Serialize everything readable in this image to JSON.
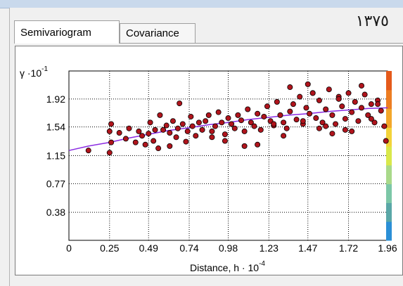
{
  "tabs": [
    {
      "label": "Semivariogram",
      "active": true
    },
    {
      "label": "Covariance",
      "active": false
    }
  ],
  "year_label": "١٣٧٥",
  "chart_data": {
    "type": "scatter",
    "ylabel_prefix": "γ ·10",
    "ylabel_exp": "-1",
    "xlabel_main": "Distance, h · 10",
    "xlabel_exp": "-4",
    "xlim": [
      0,
      1.96
    ],
    "ylim": [
      0,
      2.3
    ],
    "x_ticks": [
      "0",
      "0.25",
      "0.49",
      "0.74",
      "0.98",
      "1.23",
      "1.47",
      "1.72",
      "1.96"
    ],
    "y_ticks": [
      "0.38",
      "0.77",
      "1.15",
      "1.54",
      "1.92"
    ],
    "grid": true,
    "colors": {
      "point": "#b0141c",
      "point_edge": "#000000",
      "model_line": "#8a2be2"
    },
    "colorbar": [
      "#2b8fd6",
      "#5aa7a7",
      "#7cc7a7",
      "#a9d98a",
      "#d9e84a",
      "#f3d33a",
      "#f3a72a",
      "#ed7d22",
      "#e55a1b"
    ],
    "model_curve": {
      "x": [
        0,
        0.12,
        0.25,
        0.37,
        0.49,
        0.61,
        0.74,
        0.86,
        0.98,
        1.1,
        1.23,
        1.35,
        1.47,
        1.6,
        1.72,
        1.84,
        1.96
      ],
      "y": [
        1.22,
        1.28,
        1.33,
        1.39,
        1.44,
        1.49,
        1.53,
        1.57,
        1.6,
        1.64,
        1.67,
        1.7,
        1.72,
        1.75,
        1.77,
        1.79,
        1.8
      ]
    },
    "series": [
      {
        "x": [
          0.12,
          0.25,
          0.25,
          0.26,
          0.26,
          0.31,
          0.35,
          0.37,
          0.41,
          0.43,
          0.45,
          0.47,
          0.49,
          0.5,
          0.52,
          0.53,
          0.55,
          0.56,
          0.58,
          0.6,
          0.62,
          0.64,
          0.66,
          0.67,
          0.68,
          0.7,
          0.72,
          0.73,
          0.75,
          0.76,
          0.78,
          0.8,
          0.82,
          0.84,
          0.86,
          0.88,
          0.9,
          0.92,
          0.94,
          0.96,
          0.98,
          1.0,
          1.02,
          1.04,
          1.06,
          1.08,
          1.1,
          1.12,
          1.14,
          1.16,
          1.18,
          1.2,
          1.22,
          1.24,
          1.26,
          1.28,
          1.3,
          1.32,
          1.34,
          1.36,
          1.38,
          1.4,
          1.42,
          1.44,
          1.46,
          1.48,
          1.5,
          1.52,
          1.54,
          1.56,
          1.58,
          1.6,
          1.62,
          1.64,
          1.66,
          1.68,
          1.7,
          1.72,
          1.74,
          1.76,
          1.78,
          1.8,
          1.82,
          1.84,
          1.86,
          1.88,
          1.9,
          1.92,
          1.94,
          1.95,
          0.62,
          0.88,
          1.16,
          1.26,
          1.44,
          1.58,
          1.7,
          1.86,
          1.36,
          1.5,
          1.66,
          1.8,
          1.9,
          1.47,
          1.62,
          1.74,
          0.96,
          1.08,
          1.32,
          1.54
        ],
        "y": [
          1.22,
          1.19,
          1.48,
          1.58,
          1.33,
          1.46,
          1.38,
          1.52,
          1.33,
          1.48,
          1.42,
          1.3,
          1.45,
          1.6,
          1.35,
          1.5,
          1.25,
          1.7,
          1.5,
          1.56,
          1.28,
          1.62,
          1.4,
          1.52,
          1.86,
          1.58,
          1.34,
          1.48,
          1.68,
          1.55,
          1.42,
          1.6,
          1.5,
          1.62,
          1.7,
          1.48,
          1.55,
          1.74,
          1.6,
          1.44,
          1.66,
          1.58,
          1.52,
          1.7,
          1.63,
          1.48,
          1.78,
          1.6,
          1.55,
          1.72,
          1.5,
          1.68,
          1.82,
          1.62,
          1.56,
          1.88,
          1.7,
          1.6,
          1.52,
          1.75,
          1.85,
          1.64,
          1.95,
          1.58,
          1.8,
          1.72,
          2.0,
          1.66,
          1.9,
          1.6,
          1.78,
          2.05,
          1.7,
          1.58,
          1.95,
          1.82,
          1.65,
          2.0,
          1.74,
          1.88,
          1.62,
          1.8,
          1.98,
          1.7,
          1.85,
          1.6,
          1.9,
          1.76,
          1.55,
          1.35,
          1.46,
          1.4,
          1.3,
          1.58,
          1.62,
          1.55,
          1.5,
          1.65,
          2.08,
          2.0,
          1.92,
          2.1,
          1.85,
          2.12,
          1.45,
          1.48,
          1.35,
          1.28,
          1.42,
          1.52
        ]
      }
    ]
  }
}
